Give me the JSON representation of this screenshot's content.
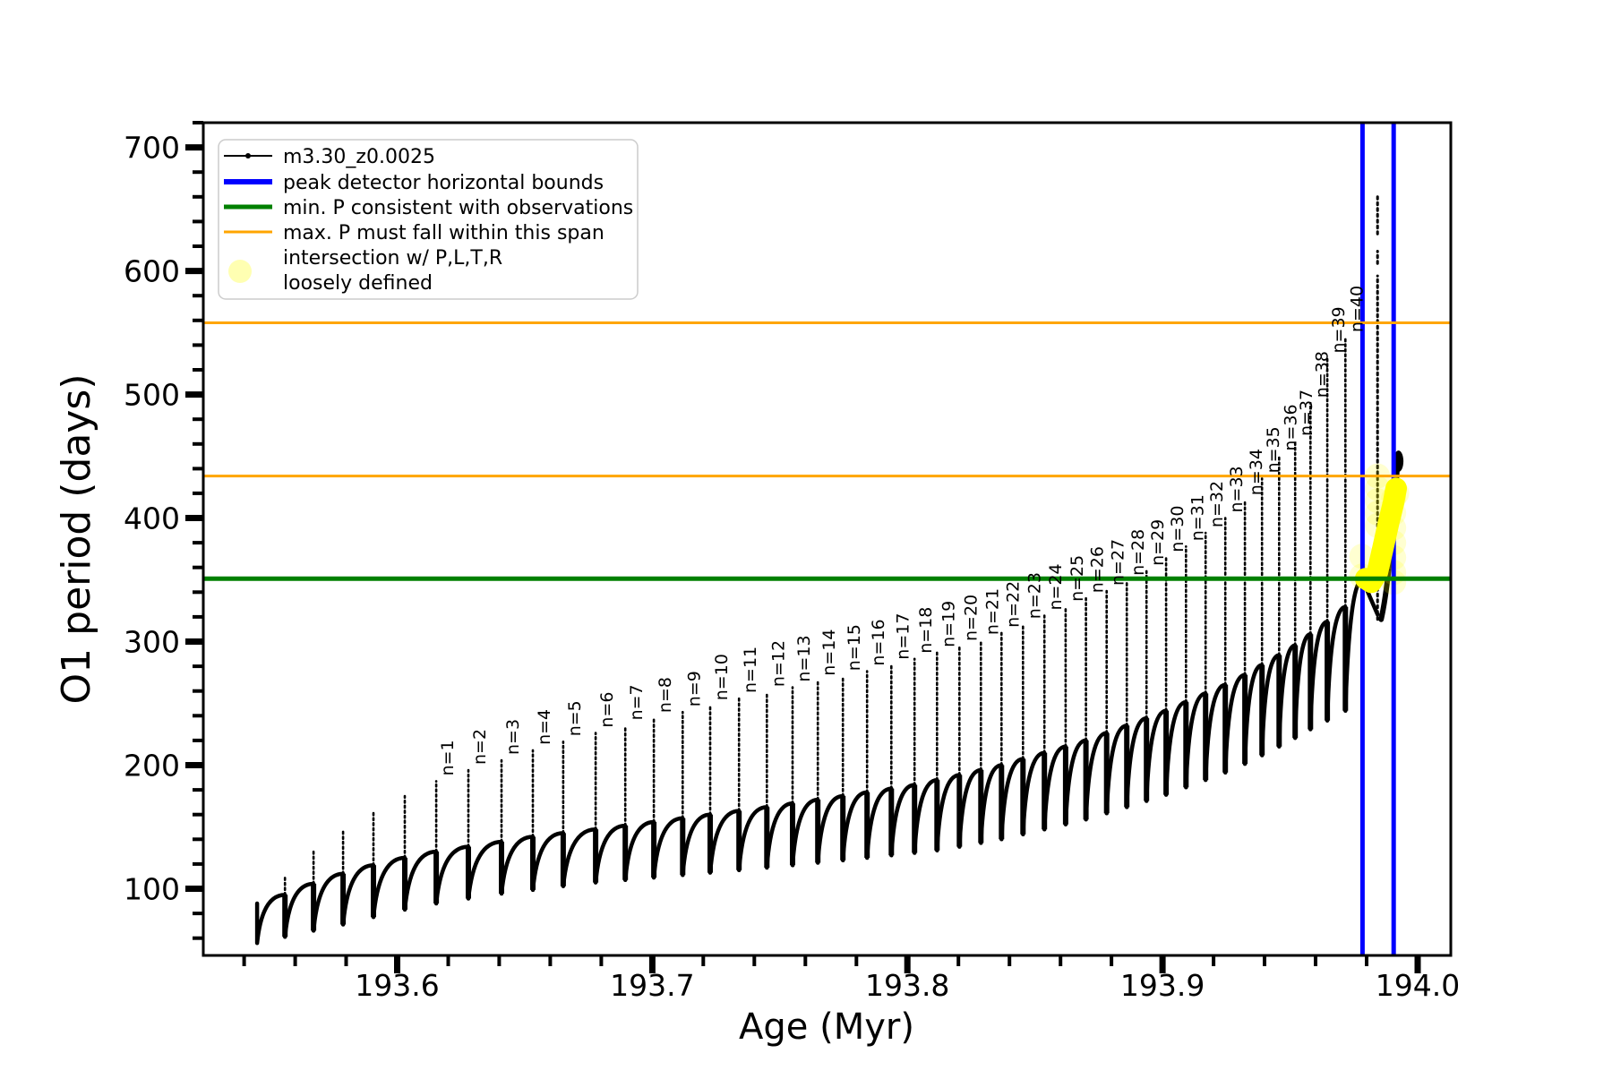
{
  "figure": {
    "background": "#ffffff"
  },
  "legend": {
    "entries": [
      {
        "type": "line-dot",
        "color": "#000000",
        "label": "m3.30_z0.0025"
      },
      {
        "type": "line",
        "color": "#0000ff",
        "label": "peak detector horizontal bounds"
      },
      {
        "type": "line",
        "color": "#008000",
        "label": "min. P consistent with observations"
      },
      {
        "type": "line",
        "color": "#ffa500",
        "label": "max. P must fall within this span"
      },
      {
        "type": "circle",
        "color": "#ffff00",
        "label": "intersection w/ P,L,T,R",
        "label2": "loosely defined"
      }
    ]
  },
  "chart_data": {
    "type": "line",
    "title": "",
    "xlabel": "Age (Myr)",
    "ylabel": "O1 period (days)",
    "xlim": [
      193.524,
      194.013
    ],
    "ylim": [
      46,
      720
    ],
    "grid": false,
    "legend_position": "upper-left",
    "x_ticks": [
      {
        "v": 193.6,
        "label": "193.6"
      },
      {
        "v": 193.7,
        "label": "193.7"
      },
      {
        "v": 193.8,
        "label": "193.8"
      },
      {
        "v": 193.9,
        "label": "193.9"
      },
      {
        "v": 194.0,
        "label": "194.0"
      }
    ],
    "x_minor_ticks": [
      193.54,
      193.56,
      193.58,
      193.62,
      193.64,
      193.66,
      193.68,
      193.72,
      193.74,
      193.76,
      193.78,
      193.82,
      193.84,
      193.86,
      193.88,
      193.92,
      193.94,
      193.96,
      193.98
    ],
    "y_ticks": [
      {
        "v": 100,
        "label": "100"
      },
      {
        "v": 200,
        "label": "200"
      },
      {
        "v": 300,
        "label": "300"
      },
      {
        "v": 400,
        "label": "400"
      },
      {
        "v": 500,
        "label": "500"
      },
      {
        "v": 600,
        "label": "600"
      },
      {
        "v": 700,
        "label": "700"
      }
    ],
    "y_minor_ticks": [
      60,
      80,
      120,
      140,
      160,
      180,
      220,
      240,
      260,
      280,
      320,
      340,
      360,
      380,
      420,
      440,
      460,
      480,
      520,
      540,
      560,
      580,
      620,
      640,
      660,
      680,
      720
    ],
    "hlines": [
      {
        "y": 558,
        "color": "#ffa500",
        "width": 3,
        "meaning": "max. P span upper"
      },
      {
        "y": 434,
        "color": "#ffa500",
        "width": 3,
        "meaning": "max. P span lower"
      },
      {
        "y": 351,
        "color": "#008000",
        "width": 5,
        "meaning": "min. P consistent with observations"
      }
    ],
    "vlines": [
      {
        "x": 193.9784,
        "color": "#0000ff"
      },
      {
        "x": 193.9906,
        "color": "#0000ff"
      }
    ],
    "series": {
      "color": "#000000",
      "pulses": [
        {
          "n": 0,
          "age": 193.5451,
          "peak": 88,
          "dip": 56
        },
        {
          "n": 0,
          "age": 193.556,
          "plateau": 95,
          "peak": 110,
          "dip": 61
        },
        {
          "n": 0,
          "age": 193.5672,
          "plateau": 104,
          "peak": 130,
          "dip": 66
        },
        {
          "n": 0,
          "age": 193.5788,
          "plateau": 112,
          "peak": 148,
          "dip": 71
        },
        {
          "n": 0,
          "age": 193.5907,
          "plateau": 119,
          "peak": 163,
          "dip": 77
        },
        {
          "n": 0,
          "age": 193.603,
          "plateau": 125,
          "peak": 175,
          "dip": 83
        },
        {
          "n": 1,
          "age": 193.6153,
          "plateau": 130,
          "peak": 187,
          "dip": 88
        },
        {
          "n": 2,
          "age": 193.6279,
          "plateau": 134,
          "peak": 196,
          "dip": 92
        },
        {
          "n": 3,
          "age": 193.6409,
          "plateau": 138,
          "peak": 204,
          "dip": 96
        },
        {
          "n": 4,
          "age": 193.6532,
          "plateau": 142,
          "peak": 212,
          "dip": 99
        },
        {
          "n": 5,
          "age": 193.6651,
          "plateau": 145,
          "peak": 219,
          "dip": 102
        },
        {
          "n": 6,
          "age": 193.6778,
          "plateau": 148,
          "peak": 226,
          "dip": 105
        },
        {
          "n": 7,
          "age": 193.6894,
          "plateau": 151,
          "peak": 232,
          "dip": 107
        },
        {
          "n": 8,
          "age": 193.7006,
          "plateau": 154,
          "peak": 238,
          "dip": 109
        },
        {
          "n": 9,
          "age": 193.7119,
          "plateau": 157,
          "peak": 243,
          "dip": 111
        },
        {
          "n": 10,
          "age": 193.7227,
          "plateau": 160,
          "peak": 248,
          "dip": 113
        },
        {
          "n": 11,
          "age": 193.734,
          "plateau": 163,
          "peak": 254,
          "dip": 115
        },
        {
          "n": 12,
          "age": 193.7449,
          "plateau": 166,
          "peak": 259,
          "dip": 117
        },
        {
          "n": 13,
          "age": 193.755,
          "plateau": 169,
          "peak": 263,
          "dip": 119
        },
        {
          "n": 14,
          "age": 193.7649,
          "plateau": 172,
          "peak": 268,
          "dip": 121
        },
        {
          "n": 15,
          "age": 193.7747,
          "plateau": 175,
          "peak": 272,
          "dip": 123
        },
        {
          "n": 16,
          "age": 193.7842,
          "plateau": 178,
          "peak": 276,
          "dip": 125
        },
        {
          "n": 17,
          "age": 193.7937,
          "plateau": 181,
          "peak": 281,
          "dip": 127
        },
        {
          "n": 18,
          "age": 193.8028,
          "plateau": 184,
          "peak": 286,
          "dip": 129
        },
        {
          "n": 19,
          "age": 193.8116,
          "plateau": 188,
          "peak": 291,
          "dip": 131
        },
        {
          "n": 20,
          "age": 193.8204,
          "plateau": 192,
          "peak": 296,
          "dip": 134
        },
        {
          "n": 21,
          "age": 193.8288,
          "plateau": 196,
          "peak": 301,
          "dip": 137
        },
        {
          "n": 22,
          "age": 193.8369,
          "plateau": 200,
          "peak": 307,
          "dip": 140
        },
        {
          "n": 23,
          "age": 193.8453,
          "plateau": 205,
          "peak": 314,
          "dip": 144
        },
        {
          "n": 24,
          "age": 193.8537,
          "plateau": 210,
          "peak": 321,
          "dip": 148
        },
        {
          "n": 25,
          "age": 193.862,
          "plateau": 215,
          "peak": 328,
          "dip": 152
        },
        {
          "n": 26,
          "age": 193.87,
          "plateau": 220,
          "peak": 335,
          "dip": 156
        },
        {
          "n": 27,
          "age": 193.8781,
          "plateau": 226,
          "peak": 341,
          "dip": 161
        },
        {
          "n": 28,
          "age": 193.886,
          "plateau": 232,
          "peak": 349,
          "dip": 166
        },
        {
          "n": 29,
          "age": 193.8937,
          "plateau": 238,
          "peak": 357,
          "dip": 171
        },
        {
          "n": 30,
          "age": 193.9014,
          "plateau": 244,
          "peak": 368,
          "dip": 176
        },
        {
          "n": 31,
          "age": 193.9092,
          "plateau": 251,
          "peak": 377,
          "dip": 182
        },
        {
          "n": 32,
          "age": 193.9169,
          "plateau": 258,
          "peak": 388,
          "dip": 188
        },
        {
          "n": 33,
          "age": 193.9246,
          "plateau": 265,
          "peak": 400,
          "dip": 194
        },
        {
          "n": 34,
          "age": 193.9323,
          "plateau": 273,
          "peak": 414,
          "dip": 201
        },
        {
          "n": 35,
          "age": 193.939,
          "plateau": 281,
          "peak": 432,
          "dip": 208
        },
        {
          "n": 36,
          "age": 193.9457,
          "plateau": 289,
          "peak": 450,
          "dip": 215
        },
        {
          "n": 37,
          "age": 193.952,
          "plateau": 297,
          "peak": 462,
          "dip": 222
        },
        {
          "n": 38,
          "age": 193.958,
          "plateau": 306,
          "peak": 493,
          "dip": 229
        },
        {
          "n": 39,
          "age": 193.9646,
          "plateau": 316,
          "peak": 529,
          "dip": 236
        },
        {
          "n": 40,
          "age": 193.9717,
          "plateau": 328,
          "peak": 546,
          "dip": 244
        }
      ]
    },
    "final_pulse": {
      "pre_peak_age": 193.9784,
      "pre_peak_period": 350,
      "spike_age": 193.9843,
      "spike_entry_period": 322,
      "spike_segments": [
        [
          318,
          596
        ],
        [
          606,
          616
        ],
        [
          630,
          662
        ]
      ],
      "post_dip_period": 318,
      "post_rise_end": {
        "age": 193.9922,
        "period": 448
      },
      "cluster": {
        "age": 193.9925,
        "period": 446
      }
    },
    "intersection_overlay": {
      "color": "#ffff00",
      "core": [
        [
          193.9796,
          351
        ],
        [
          193.9818,
          348
        ],
        [
          193.9842,
          356
        ],
        [
          193.9862,
          374
        ],
        [
          193.9886,
          396
        ],
        [
          193.9905,
          412
        ],
        [
          193.9916,
          424
        ]
      ],
      "halos": [
        [
          193.9781,
          369
        ],
        [
          193.9781,
          353
        ],
        [
          193.9843,
          434
        ],
        [
          193.9843,
          424
        ],
        [
          193.9843,
          414
        ],
        [
          193.9843,
          404
        ],
        [
          193.9843,
          394
        ],
        [
          193.9906,
          416
        ],
        [
          193.9906,
          404
        ],
        [
          193.9906,
          392
        ],
        [
          193.9906,
          380
        ],
        [
          193.9906,
          368
        ],
        [
          193.9906,
          356
        ],
        [
          193.9906,
          348
        ],
        [
          193.9918,
          420
        ]
      ]
    }
  }
}
